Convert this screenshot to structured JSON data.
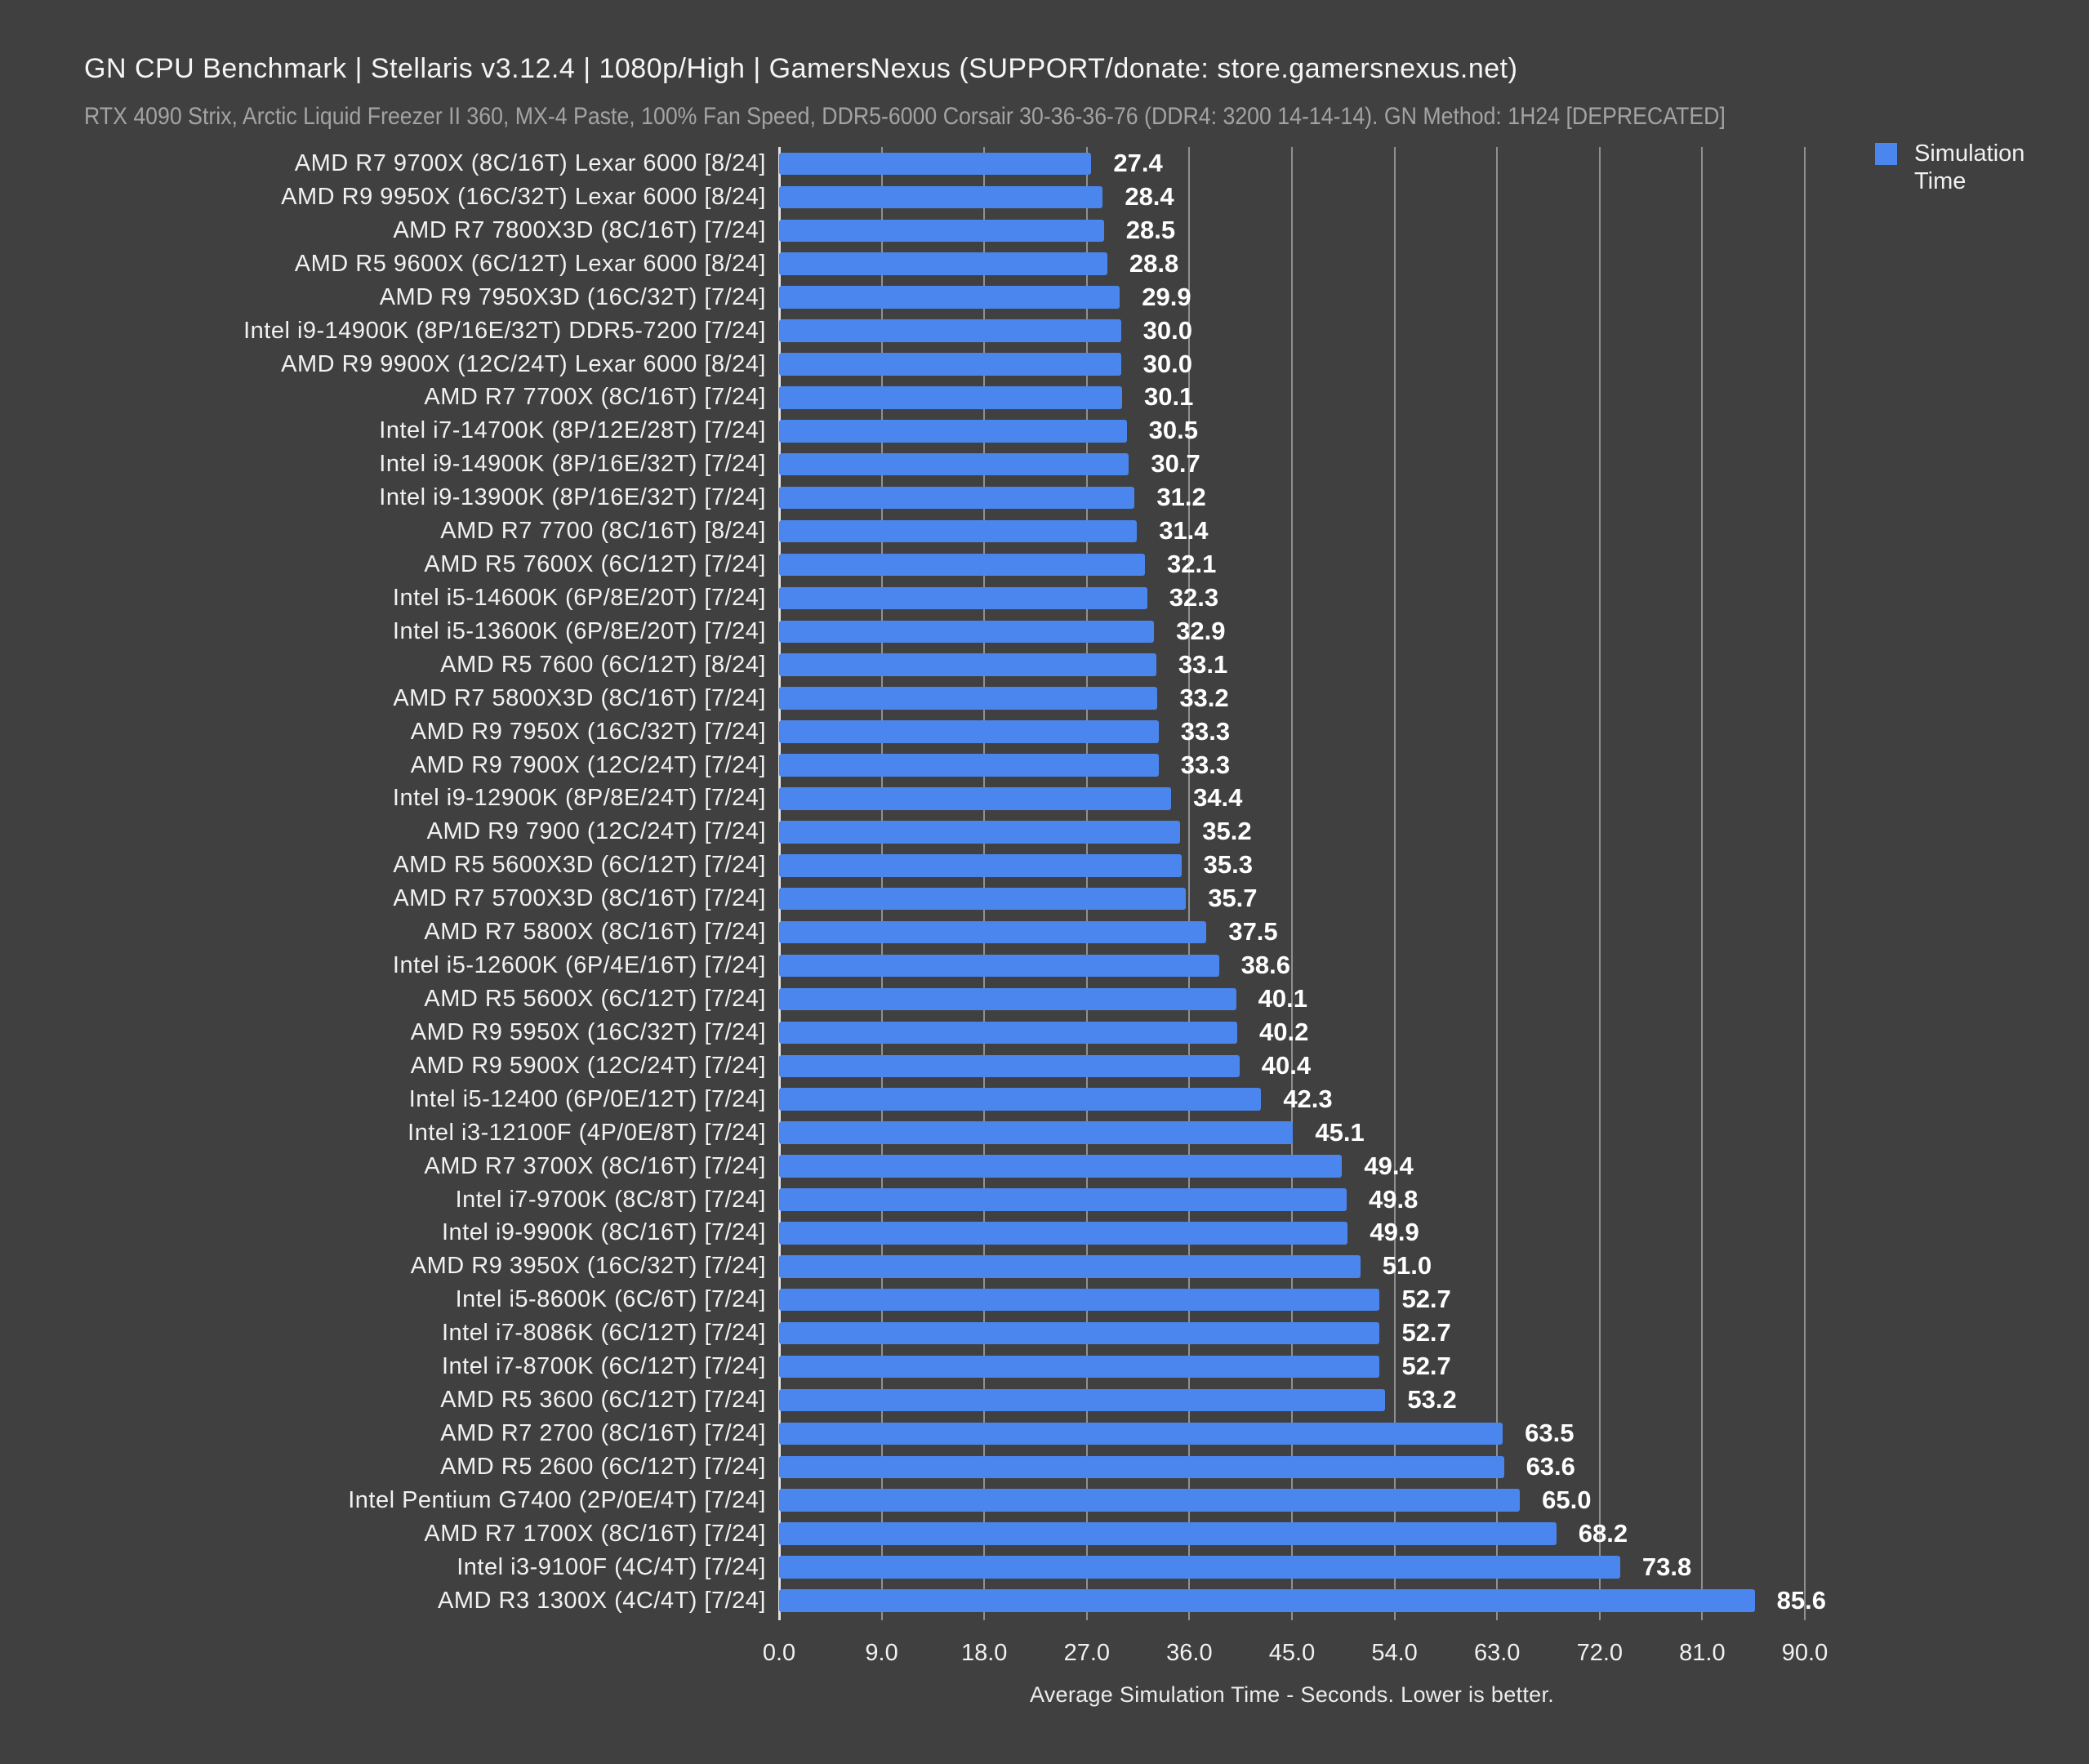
{
  "header": {
    "title": "GN CPU Benchmark | Stellaris v3.12.4 | 1080p/High | GamersNexus (SUPPORT/donate: store.gamersnexus.net)",
    "subtitle": "RTX 4090 Strix, Arctic Liquid Freezer II 360, MX-4 Paste, 100% Fan Speed, DDR5-6000 Corsair 30-36-36-76 (DDR4: 3200 14-14-14). GN Method: 1H24 [DEPRECATED]"
  },
  "legend": {
    "label": "Simulation Time",
    "color": "#4b86ee"
  },
  "colors": {
    "background": "#404040",
    "bar": "#4b86ee",
    "text": "#f1f1f1",
    "subtitle_text": "#a3a3a3",
    "gridline": "#909090"
  },
  "chart_data": {
    "type": "bar",
    "orientation": "horizontal",
    "title": "GN CPU Benchmark | Stellaris v3.12.4 | 1080p/High | GamersNexus (SUPPORT/donate: store.gamersnexus.net)",
    "subtitle": "RTX 4090 Strix, Arctic Liquid Freezer II 360, MX-4 Paste, 100% Fan Speed, DDR5-6000 Corsair 30-36-36-76 (DDR4: 3200 14-14-14). GN Method: 1H24 [DEPRECATED]",
    "series_name": "Simulation Time",
    "xlabel": "Average Simulation Time - Seconds. Lower is better.",
    "xlim": [
      0,
      90
    ],
    "xticks": [
      "0.0",
      "9.0",
      "18.0",
      "27.0",
      "36.0",
      "45.0",
      "54.0",
      "63.0",
      "72.0",
      "81.0",
      "90.0"
    ],
    "grid": true,
    "legend_position": "top-right",
    "value_label_decimals": 1,
    "categories": [
      "AMD R7 9700X (8C/16T) Lexar 6000 [8/24]",
      "AMD R9 9950X (16C/32T) Lexar 6000 [8/24]",
      "AMD R7 7800X3D (8C/16T) [7/24]",
      "AMD R5 9600X (6C/12T) Lexar 6000 [8/24]",
      "AMD R9 7950X3D (16C/32T) [7/24]",
      "Intel i9-14900K (8P/16E/32T) DDR5-7200 [7/24]",
      "AMD R9 9900X (12C/24T) Lexar 6000 [8/24]",
      "AMD R7 7700X (8C/16T) [7/24]",
      "Intel i7-14700K (8P/12E/28T) [7/24]",
      "Intel i9-14900K (8P/16E/32T) [7/24]",
      "Intel i9-13900K (8P/16E/32T) [7/24]",
      "AMD R7 7700 (8C/16T) [8/24]",
      "AMD R5 7600X (6C/12T) [7/24]",
      "Intel i5-14600K (6P/8E/20T) [7/24]",
      "Intel i5-13600K (6P/8E/20T) [7/24]",
      "AMD R5 7600 (6C/12T) [8/24]",
      "AMD R7 5800X3D (8C/16T) [7/24]",
      "AMD R9 7950X (16C/32T) [7/24]",
      "AMD R9 7900X (12C/24T) [7/24]",
      "Intel i9-12900K (8P/8E/24T) [7/24]",
      "AMD R9 7900 (12C/24T) [7/24]",
      "AMD R5 5600X3D (6C/12T) [7/24]",
      "AMD R7 5700X3D (8C/16T) [7/24]",
      "AMD R7 5800X (8C/16T) [7/24]",
      "Intel i5-12600K (6P/4E/16T) [7/24]",
      "AMD R5 5600X (6C/12T) [7/24]",
      "AMD R9 5950X (16C/32T) [7/24]",
      "AMD R9 5900X (12C/24T) [7/24]",
      "Intel i5-12400 (6P/0E/12T) [7/24]",
      "Intel i3-12100F (4P/0E/8T) [7/24]",
      "AMD R7 3700X (8C/16T) [7/24]",
      "Intel i7-9700K (8C/8T) [7/24]",
      "Intel i9-9900K (8C/16T) [7/24]",
      "AMD R9 3950X (16C/32T) [7/24]",
      "Intel i5-8600K (6C/6T) [7/24]",
      "Intel i7-8086K (6C/12T) [7/24]",
      "Intel i7-8700K (6C/12T) [7/24]",
      "AMD R5 3600 (6C/12T) [7/24]",
      "AMD R7 2700 (8C/16T) [7/24]",
      "AMD R5 2600 (6C/12T) [7/24]",
      "Intel Pentium G7400 (2P/0E/4T) [7/24]",
      "AMD R7 1700X (8C/16T) [7/24]",
      "Intel i3-9100F (4C/4T) [7/24]",
      "AMD R3 1300X (4C/4T) [7/24]"
    ],
    "values": [
      27.4,
      28.4,
      28.5,
      28.8,
      29.9,
      30.0,
      30.0,
      30.1,
      30.5,
      30.7,
      31.2,
      31.4,
      32.1,
      32.3,
      32.9,
      33.1,
      33.2,
      33.3,
      33.3,
      34.4,
      35.2,
      35.3,
      35.7,
      37.5,
      38.6,
      40.1,
      40.2,
      40.4,
      42.3,
      45.1,
      49.4,
      49.8,
      49.9,
      51.0,
      52.7,
      52.7,
      52.7,
      53.2,
      63.5,
      63.6,
      65.0,
      68.2,
      73.8,
      85.6
    ]
  }
}
